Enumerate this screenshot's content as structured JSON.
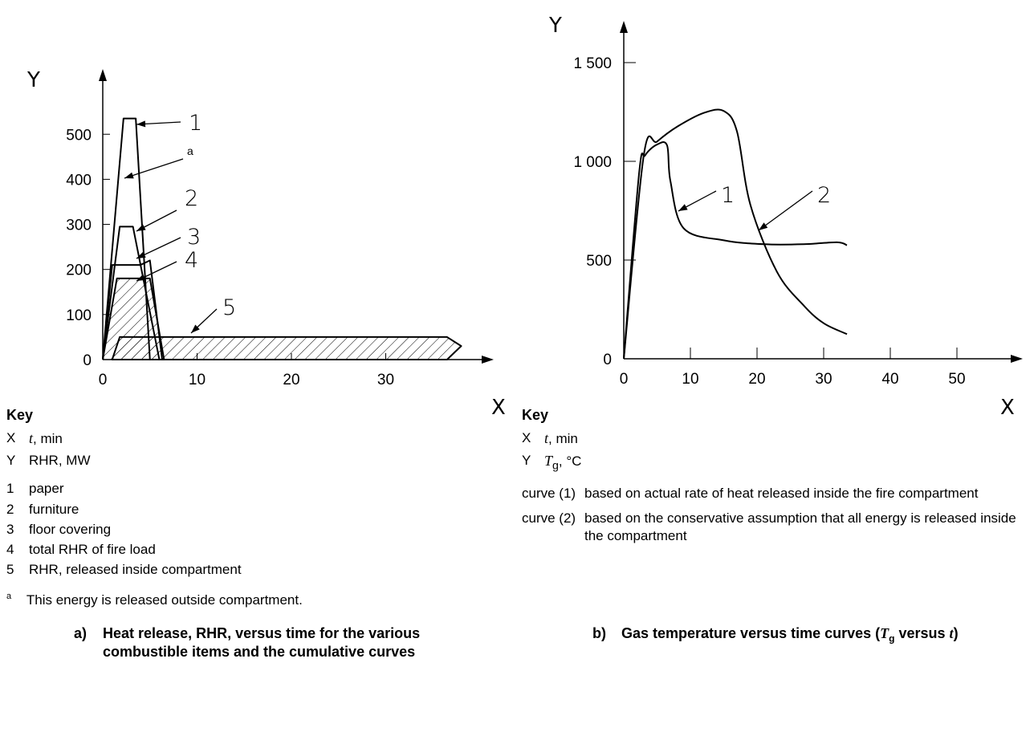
{
  "chart_data": [
    {
      "type": "area",
      "xlabel": "X",
      "ylabel": "Y",
      "xlim": [
        0,
        40
      ],
      "ylim": [
        0,
        550
      ],
      "xticks": [
        "0",
        "10",
        "20",
        "30"
      ],
      "yticks": [
        "0",
        "100",
        "200",
        "300",
        "400",
        "500"
      ],
      "series": [
        {
          "name": "1",
          "x": [
            0,
            2.2,
            3.5,
            5
          ],
          "y": [
            0,
            535,
            535,
            0
          ]
        },
        {
          "name": "2",
          "x": [
            0,
            1.8,
            3.2,
            6
          ],
          "y": [
            0,
            295,
            295,
            0
          ]
        },
        {
          "name": "3",
          "x": [
            0,
            1,
            4,
            5,
            6.3
          ],
          "y": [
            0,
            210,
            210,
            220,
            0
          ]
        },
        {
          "name": "4",
          "x": [
            0,
            1.5,
            5,
            6.5
          ],
          "y": [
            0,
            180,
            180,
            0
          ]
        },
        {
          "name": "5",
          "x": [
            1,
            1.8,
            36.5,
            38,
            36.5
          ],
          "y": [
            0,
            50,
            50,
            30,
            0
          ]
        }
      ],
      "annotations": [
        "1",
        "a",
        "2",
        "3",
        "4",
        "5"
      ]
    },
    {
      "type": "line",
      "xlabel": "X",
      "ylabel": "Y",
      "xlim": [
        0,
        55
      ],
      "ylim": [
        0,
        1700
      ],
      "xticks": [
        "0",
        "10",
        "20",
        "30",
        "40",
        "50"
      ],
      "yticks": [
        "0",
        "500",
        "1 000",
        "1 500"
      ],
      "series": [
        {
          "name": "1",
          "x": [
            0,
            2.3,
            3.2,
            5,
            6.5,
            7,
            9,
            15,
            21,
            27,
            32,
            33.5
          ],
          "y": [
            0,
            940,
            1030,
            1085,
            1080,
            900,
            660,
            600,
            580,
            580,
            590,
            575
          ]
        },
        {
          "name": "2",
          "x": [
            0,
            3,
            5,
            8,
            12,
            15,
            17,
            19,
            23,
            27,
            30,
            33.5
          ],
          "y": [
            0,
            1030,
            1100,
            1175,
            1245,
            1255,
            1150,
            780,
            440,
            270,
            180,
            125
          ]
        }
      ],
      "annotations": [
        "1",
        "2"
      ]
    }
  ],
  "left_key": {
    "heading": "Key",
    "rows": [
      {
        "k": "X",
        "v_italic": "t",
        "v": ", min"
      },
      {
        "k": "Y",
        "v": "RHR, MW"
      }
    ],
    "items": [
      {
        "k": "1",
        "v": "paper"
      },
      {
        "k": "2",
        "v": "furniture"
      },
      {
        "k": "3",
        "v": "floor covering"
      },
      {
        "k": "4",
        "v": "total RHR of fire load"
      },
      {
        "k": "5",
        "v": "RHR, released inside compartment"
      }
    ],
    "note_mark": "a",
    "note": "This energy is released outside compartment."
  },
  "right_key": {
    "heading": "Key",
    "rows": [
      {
        "k": "X",
        "v_italic": "t",
        "v": ", min"
      },
      {
        "k": "Y",
        "v_italic": "T",
        "v_sub": "g",
        "v": ", °C"
      }
    ],
    "items": [
      {
        "k": "curve (1)",
        "v": "based on actual rate of heat released inside the fire compartment"
      },
      {
        "k": "curve (2)",
        "v": "based on the conservative assumption that all energy is released inside the compartment"
      }
    ]
  },
  "captions": {
    "a_label": "a)",
    "a_line1": "Heat release, RHR, versus time for the various",
    "a_line2": "combustible items and the cumulative curves",
    "b_label": "b)",
    "b_pre": "Gas temperature versus time curves (",
    "b_T": "T",
    "b_sub": "g",
    "b_mid": " versus ",
    "b_t": "t",
    "b_end": ")"
  }
}
